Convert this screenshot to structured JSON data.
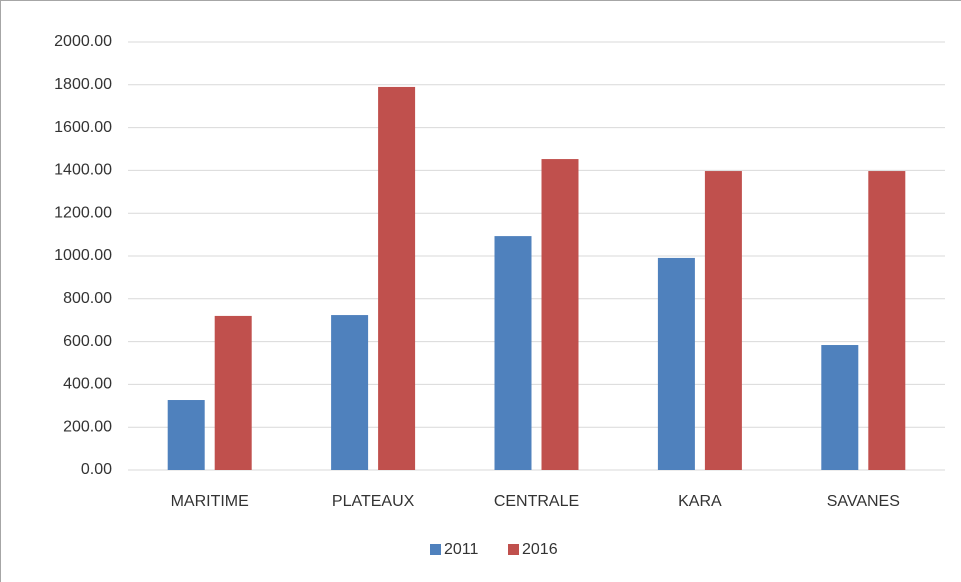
{
  "chart_data": {
    "type": "bar",
    "categories": [
      "MARITIME",
      "PLATEAUX",
      "CENTRALE",
      "KARA",
      "SAVANES"
    ],
    "series": [
      {
        "name": "2011",
        "color": "#4f81bd",
        "values": [
          327,
          724,
          1093,
          991,
          584
        ]
      },
      {
        "name": "2016",
        "color": "#c0504d",
        "values": [
          720,
          1790,
          1453,
          1397,
          1397
        ]
      }
    ],
    "ylim": [
      0,
      2000
    ],
    "yticks": [
      {
        "value": 0,
        "label": "0.00"
      },
      {
        "value": 200,
        "label": "200.00"
      },
      {
        "value": 400,
        "label": "400.00"
      },
      {
        "value": 600,
        "label": "600.00"
      },
      {
        "value": 800,
        "label": "800.00"
      },
      {
        "value": 1000,
        "label": "1000.00"
      },
      {
        "value": 1200,
        "label": "1200.00"
      },
      {
        "value": 1400,
        "label": "1400.00"
      },
      {
        "value": 1600,
        "label": "1600.00"
      },
      {
        "value": 1800,
        "label": "1800.00"
      },
      {
        "value": 2000,
        "label": "2000.00"
      }
    ],
    "grid": true,
    "legend": "bottom"
  }
}
